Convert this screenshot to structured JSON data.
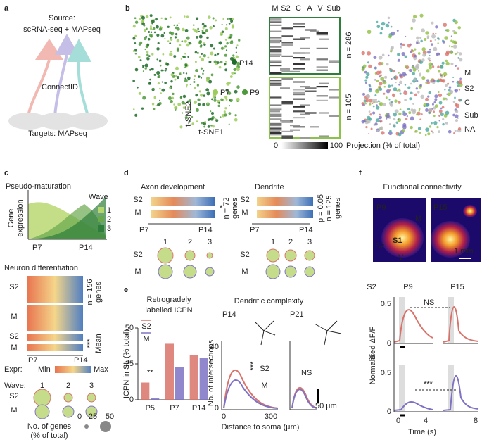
{
  "panels": {
    "a": [
      "a",
      "Source:",
      "scRNA-seq + MAPseq",
      "ConnectID",
      "Targets: MAPseq"
    ],
    "b": [
      "b",
      "P14",
      "P7",
      "P9",
      "t-SNE2",
      "t-SNE1",
      "M",
      "S2",
      "C",
      "A",
      "V",
      "Sub",
      "n = 286",
      "n = 105",
      "0",
      "100",
      "Projection (% of total)",
      "M",
      "S2",
      "C",
      "Sub",
      "NA"
    ],
    "c": [
      "c",
      "Pseudo-maturation",
      "Wave",
      "1",
      "2",
      "3",
      "Gene",
      "expression",
      "P7",
      "P14",
      "Neuron differentiation",
      "S2",
      "M",
      "S2",
      "M",
      "n = 156",
      "genes",
      "***",
      "Mean",
      "P7",
      "P14",
      "Expr:",
      "Min",
      "Max",
      "Wave:",
      "1",
      "2",
      "3",
      "S2",
      "M",
      "0",
      "25",
      "50",
      "No. of genes",
      "(% of total)"
    ],
    "d": [
      "d",
      "Axon development",
      "S2",
      "M",
      "*",
      "n = 72",
      "genes",
      "P7",
      "P14",
      "1",
      "2",
      "3",
      "S2",
      "M",
      "Dendrite",
      "S2",
      "M",
      "p = 0.05",
      "n = 125",
      "genes",
      "P7",
      "P14",
      "1",
      "2",
      "3",
      "S2",
      "M"
    ],
    "e": [
      "e",
      "Dendritic complexity",
      "P14",
      "P21",
      "S2",
      "M",
      "***",
      "NS",
      "No. of intersections",
      "40",
      "0",
      "0",
      "300",
      "Distance to soma (µm)",
      "50 µm"
    ],
    "f": [
      "f",
      "Functional connectivity",
      "P9",
      "P15",
      "M",
      "S2",
      "S1",
      "V",
      "1 mm",
      "S2",
      "P9",
      "P15",
      "NS",
      "M",
      "***",
      "Normalized ΔF/F",
      "0.5",
      "0",
      "0.5",
      "0",
      "0",
      "4",
      "8",
      "Time (s)"
    ]
  },
  "chart_data": {
    "type": "bar",
    "title": [
      "Retrogradely",
      "labelled ICPN"
    ],
    "ylabel": "ICPN in SL (% total)",
    "categories": [
      "P5",
      "P7",
      "P14"
    ],
    "series": [
      {
        "name": "S2",
        "color": "#d9736a",
        "values": [
          12,
          39,
          31
        ]
      },
      {
        "name": "M",
        "color": "#7d72c4",
        "values": [
          1,
          23,
          29
        ]
      }
    ],
    "ylim": [
      0,
      50
    ],
    "yticks": [
      0,
      25,
      50
    ],
    "annotations": [
      "**"
    ]
  }
}
